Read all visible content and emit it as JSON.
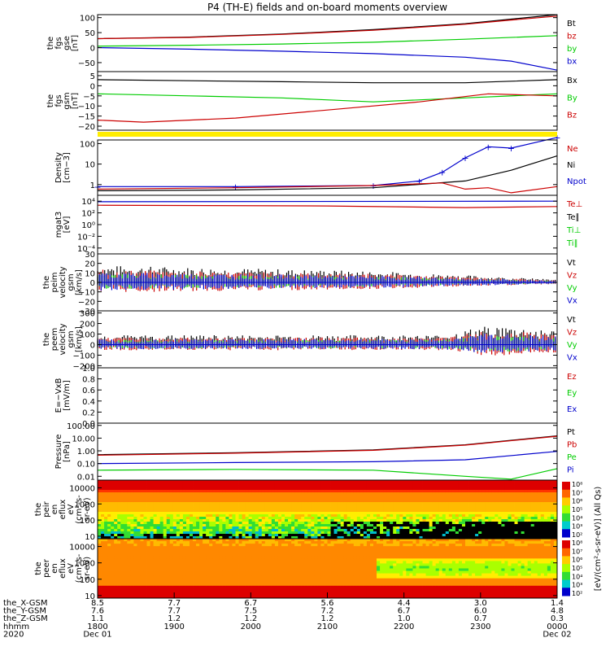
{
  "chart_data": {
    "type": "line",
    "title": "P4 (TH-E) fields and on-board moments overview",
    "time_ticks": [
      "1800",
      "1900",
      "2000",
      "2100",
      "2200",
      "2300",
      "0000"
    ],
    "x_axis": {
      "rows": [
        {
          "label": "the_X-GSM",
          "values": [
            "8.5",
            "7.7",
            "6.7",
            "5.6",
            "4.4",
            "3.0",
            "1.4"
          ]
        },
        {
          "label": "the_Y-GSM",
          "values": [
            "7.6",
            "7.7",
            "7.5",
            "7.2",
            "6.7",
            "6.0",
            "4.8"
          ]
        },
        {
          "label": "the_Z-GSM",
          "values": [
            "1.1",
            "1.2",
            "1.2",
            "1.2",
            "1.0",
            "0.7",
            "0.3"
          ]
        },
        {
          "label": "hhmm",
          "values": [
            "1800",
            "1900",
            "2000",
            "2100",
            "2200",
            "2300",
            "0000"
          ]
        },
        {
          "label": "2020",
          "values": [
            "Dec 01",
            "",
            "",
            "",
            "",
            "",
            "Dec 02"
          ]
        }
      ]
    },
    "panels": [
      {
        "ylabel": [
          "the",
          "fgs",
          "gse",
          "[nT]"
        ],
        "ylim": [
          -80,
          110
        ],
        "ticks": [
          "100",
          "50",
          "0",
          "−50"
        ],
        "tickvals": [
          100,
          50,
          0,
          -50
        ],
        "legend": [
          {
            "name": "Bt",
            "color": "#000000"
          },
          {
            "name": "bz",
            "color": "#cc0000"
          },
          {
            "name": "by",
            "color": "#00cc00"
          },
          {
            "name": "bx",
            "color": "#0000cc"
          }
        ],
        "series": [
          {
            "name": "Bt",
            "color": "#000000",
            "x": [
              0,
              0.2,
              0.4,
              0.6,
              0.8,
              0.9,
              1.0
            ],
            "y": [
              30,
              35,
              45,
              60,
              80,
              95,
              110
            ]
          },
          {
            "name": "bz",
            "color": "#cc0000",
            "x": [
              0,
              0.2,
              0.4,
              0.6,
              0.8,
              0.9,
              1.0
            ],
            "y": [
              30,
              34,
              44,
              58,
              78,
              92,
              105
            ]
          },
          {
            "name": "by",
            "color": "#00cc00",
            "x": [
              0,
              0.2,
              0.4,
              0.6,
              0.8,
              1.0
            ],
            "y": [
              5,
              8,
              12,
              18,
              28,
              40
            ]
          },
          {
            "name": "bx",
            "color": "#0000cc",
            "x": [
              0,
              0.2,
              0.4,
              0.6,
              0.8,
              0.9,
              1.0
            ],
            "y": [
              0,
              -5,
              -12,
              -20,
              -32,
              -45,
              -75
            ]
          }
        ]
      },
      {
        "ylabel": [
          "the",
          "fgs",
          "gsm",
          "[nT]"
        ],
        "ylim": [
          -22,
          7
        ],
        "ticks": [
          "5",
          "0",
          "−5",
          "−10",
          "−15",
          "−20"
        ],
        "tickvals": [
          5,
          0,
          -5,
          -10,
          -15,
          -20
        ],
        "legend": [
          {
            "name": "Bx",
            "color": "#000000"
          },
          {
            "name": "By",
            "color": "#00cc00"
          },
          {
            "name": "Bz",
            "color": "#cc0000"
          }
        ],
        "series": [
          {
            "name": "Bx",
            "color": "#000000",
            "x": [
              0,
              0.2,
              0.4,
              0.6,
              0.8,
              1.0
            ],
            "y": [
              3,
              2.5,
              2,
              1.5,
              1.5,
              3
            ]
          },
          {
            "name": "By",
            "color": "#00cc00",
            "x": [
              0,
              0.2,
              0.4,
              0.6,
              0.8,
              1.0
            ],
            "y": [
              -4,
              -5,
              -6,
              -8,
              -6,
              -4
            ]
          },
          {
            "name": "Bz",
            "color": "#cc0000",
            "x": [
              0,
              0.1,
              0.3,
              0.5,
              0.7,
              0.85,
              1.0
            ],
            "y": [
              -17,
              -18,
              -16,
              -12,
              -8,
              -4,
              -5
            ]
          }
        ]
      },
      {
        "ylabel": [
          "Density",
          "[cm−3]"
        ],
        "ylim": [
          0.3,
          150
        ],
        "log": true,
        "ticks": [
          "100",
          "10",
          "1"
        ],
        "tickvals": [
          100,
          10,
          1
        ],
        "legend": [
          {
            "name": "Ne",
            "color": "#cc0000"
          },
          {
            "name": "Ni",
            "color": "#000000"
          },
          {
            "name": "Npot",
            "color": "#0000cc"
          }
        ],
        "series": [
          {
            "name": "Npot",
            "color": "#0000cc",
            "x": [
              0,
              0.3,
              0.6,
              0.7,
              0.75,
              0.8,
              0.85,
              0.9,
              1.0
            ],
            "y": [
              0.8,
              0.8,
              0.9,
              1.5,
              4,
              20,
              70,
              60,
              200
            ]
          },
          {
            "name": "Ni",
            "color": "#000000",
            "x": [
              0,
              0.3,
              0.6,
              0.8,
              0.9,
              1.0
            ],
            "y": [
              0.5,
              0.55,
              0.7,
              1.5,
              5,
              25
            ]
          },
          {
            "name": "Ne",
            "color": "#cc0000",
            "x": [
              0,
              0.3,
              0.6,
              0.75,
              0.8,
              0.85,
              0.9,
              1.0
            ],
            "y": [
              0.6,
              0.7,
              0.9,
              1.2,
              0.6,
              0.7,
              0.4,
              0.8
            ]
          }
        ]
      },
      {
        "ylabel": [
          "mgat3",
          "[eV]"
        ],
        "ylim": [
          1e-05,
          100000
        ],
        "log": true,
        "ticks": [
          "10⁴",
          "10²",
          "10⁰",
          "10⁻²",
          "10⁻⁴"
        ],
        "tickvals": [
          10000,
          100,
          1,
          0.01,
          0.0001
        ],
        "legend": [
          {
            "name": "Te⊥",
            "color": "#cc0000"
          },
          {
            "name": "Te∥",
            "color": "#000000"
          },
          {
            "name": "Ti⊥",
            "color": "#00cc00"
          },
          {
            "name": "Ti∥",
            "color": "#00cc00"
          }
        ],
        "series": [
          {
            "name": "Ti",
            "color": "#0000cc",
            "x": [
              0,
              1.0
            ],
            "y": [
              8000,
              10000
            ]
          },
          {
            "name": "Te",
            "color": "#cc0000",
            "x": [
              0,
              0.5,
              0.8,
              1.0
            ],
            "y": [
              2000,
              1500,
              800,
              1200
            ]
          }
        ]
      },
      {
        "ylabel": [
          "the",
          "peim",
          "velocity",
          "gsm",
          "[km/s]"
        ],
        "ylim": [
          -30,
          30
        ],
        "ticks": [
          "30",
          "20",
          "10",
          "0",
          "−10",
          "−20",
          "−30"
        ],
        "tickvals": [
          30,
          20,
          10,
          0,
          -10,
          -20,
          -30
        ],
        "legend": [
          {
            "name": "Vt",
            "color": "#000000"
          },
          {
            "name": "Vz",
            "color": "#cc0000"
          },
          {
            "name": "Vy",
            "color": "#00cc00"
          },
          {
            "name": "Vx",
            "color": "#0000cc"
          }
        ],
        "noise": {
          "base": [
            [
              0,
              12
            ],
            [
              0.6,
              8
            ],
            [
              1.0,
              2
            ]
          ],
          "colors": [
            "#000000",
            "#cc0000",
            "#00cc00",
            "#0000cc"
          ]
        }
      },
      {
        "ylabel": [
          "the",
          "peem",
          "velocity",
          "gsm",
          "[km/s]"
        ],
        "ylim": [
          -220,
          320
        ],
        "ticks": [
          "300",
          "200",
          "100",
          "0",
          "−100",
          "−200"
        ],
        "tickvals": [
          300,
          200,
          100,
          0,
          -100,
          -200
        ],
        "legend": [
          {
            "name": "Vt",
            "color": "#000000"
          },
          {
            "name": "Vz",
            "color": "#cc0000"
          },
          {
            "name": "Vy",
            "color": "#00cc00"
          },
          {
            "name": "Vx",
            "color": "#0000cc"
          }
        ],
        "noise": {
          "base": [
            [
              0,
              60
            ],
            [
              0.75,
              60
            ],
            [
              0.85,
              120
            ],
            [
              1.0,
              90
            ]
          ],
          "colors": [
            "#000000",
            "#cc0000",
            "#00cc00",
            "#0000cc"
          ]
        }
      },
      {
        "ylabel": [
          "E=−VxB",
          "[mV/m]"
        ],
        "ylim": [
          0,
          1.0
        ],
        "ticks": [
          "1.0",
          "0.8",
          "0.6",
          "0.4",
          "0.2",
          "0.0"
        ],
        "tickvals": [
          1.0,
          0.8,
          0.6,
          0.4,
          0.2,
          0.0
        ],
        "legend": [
          {
            "name": "Ez",
            "color": "#cc0000"
          },
          {
            "name": "Ey",
            "color": "#00cc00"
          },
          {
            "name": "Ex",
            "color": "#0000cc"
          }
        ],
        "series": []
      },
      {
        "ylabel": [
          "Pressure",
          "[nPa]"
        ],
        "ylim": [
          0.005,
          150
        ],
        "log": true,
        "ticks": [
          "100.00",
          "10.00",
          "1.00",
          "0.10",
          "0.01"
        ],
        "tickvals": [
          100,
          10,
          1,
          0.1,
          0.01
        ],
        "legend": [
          {
            "name": "Pt",
            "color": "#000000"
          },
          {
            "name": "Pb",
            "color": "#cc0000"
          },
          {
            "name": "Pe",
            "color": "#00cc00"
          },
          {
            "name": "Pi",
            "color": "#0000cc"
          }
        ],
        "series": [
          {
            "name": "Pt",
            "color": "#000000",
            "x": [
              0,
              0.3,
              0.6,
              0.8,
              1.0
            ],
            "y": [
              0.5,
              0.7,
              1.2,
              3,
              15
            ]
          },
          {
            "name": "Pb",
            "color": "#cc0000",
            "x": [
              0,
              0.3,
              0.6,
              0.8,
              1.0
            ],
            "y": [
              0.45,
              0.65,
              1.1,
              2.8,
              14
            ]
          },
          {
            "name": "Pi",
            "color": "#0000cc",
            "x": [
              0,
              0.3,
              0.6,
              0.8,
              1.0
            ],
            "y": [
              0.1,
              0.12,
              0.14,
              0.2,
              0.9
            ]
          },
          {
            "name": "Pe",
            "color": "#00cc00",
            "x": [
              0,
              0.3,
              0.6,
              0.8,
              0.9,
              1.0
            ],
            "y": [
              0.03,
              0.035,
              0.03,
              0.01,
              0.006,
              0.04
            ]
          }
        ]
      },
      {
        "ylabel": [
          "the",
          "peir",
          "en",
          "eflux",
          "eV",
          "(cm²-s-",
          "sr-eV)"
        ],
        "ylim": [
          7,
          30000
        ],
        "log": true,
        "spectrogram": "ion",
        "ticks": [
          "10000",
          "1000",
          "100",
          "10"
        ],
        "tickvals": [
          10000,
          1000,
          100,
          10
        ]
      },
      {
        "ylabel": [
          "the",
          "peer",
          "en",
          "eflux",
          "eV",
          "(cm²-s-",
          "sr-eV)"
        ],
        "ylim": [
          7,
          30000
        ],
        "log": true,
        "spectrogram": "electron",
        "ticks": [
          "10000",
          "1000",
          "100",
          "10"
        ],
        "tickvals": [
          10000,
          1000,
          100,
          10
        ]
      }
    ],
    "colorbar": {
      "label": "[eV/(cm²-s-sr-eV)] (All Qs)",
      "ion_ticks": [
        "10⁸",
        "10⁷",
        "10⁶",
        "10⁵",
        "10⁴",
        "10³",
        "10²"
      ],
      "electron_ticks": [
        "10⁸",
        "10⁷",
        "10⁶",
        "10⁵",
        "10⁴",
        "10³",
        "10²"
      ]
    }
  },
  "colors": {
    "axis": "#000000",
    "yellow_band": "#ffee00"
  }
}
